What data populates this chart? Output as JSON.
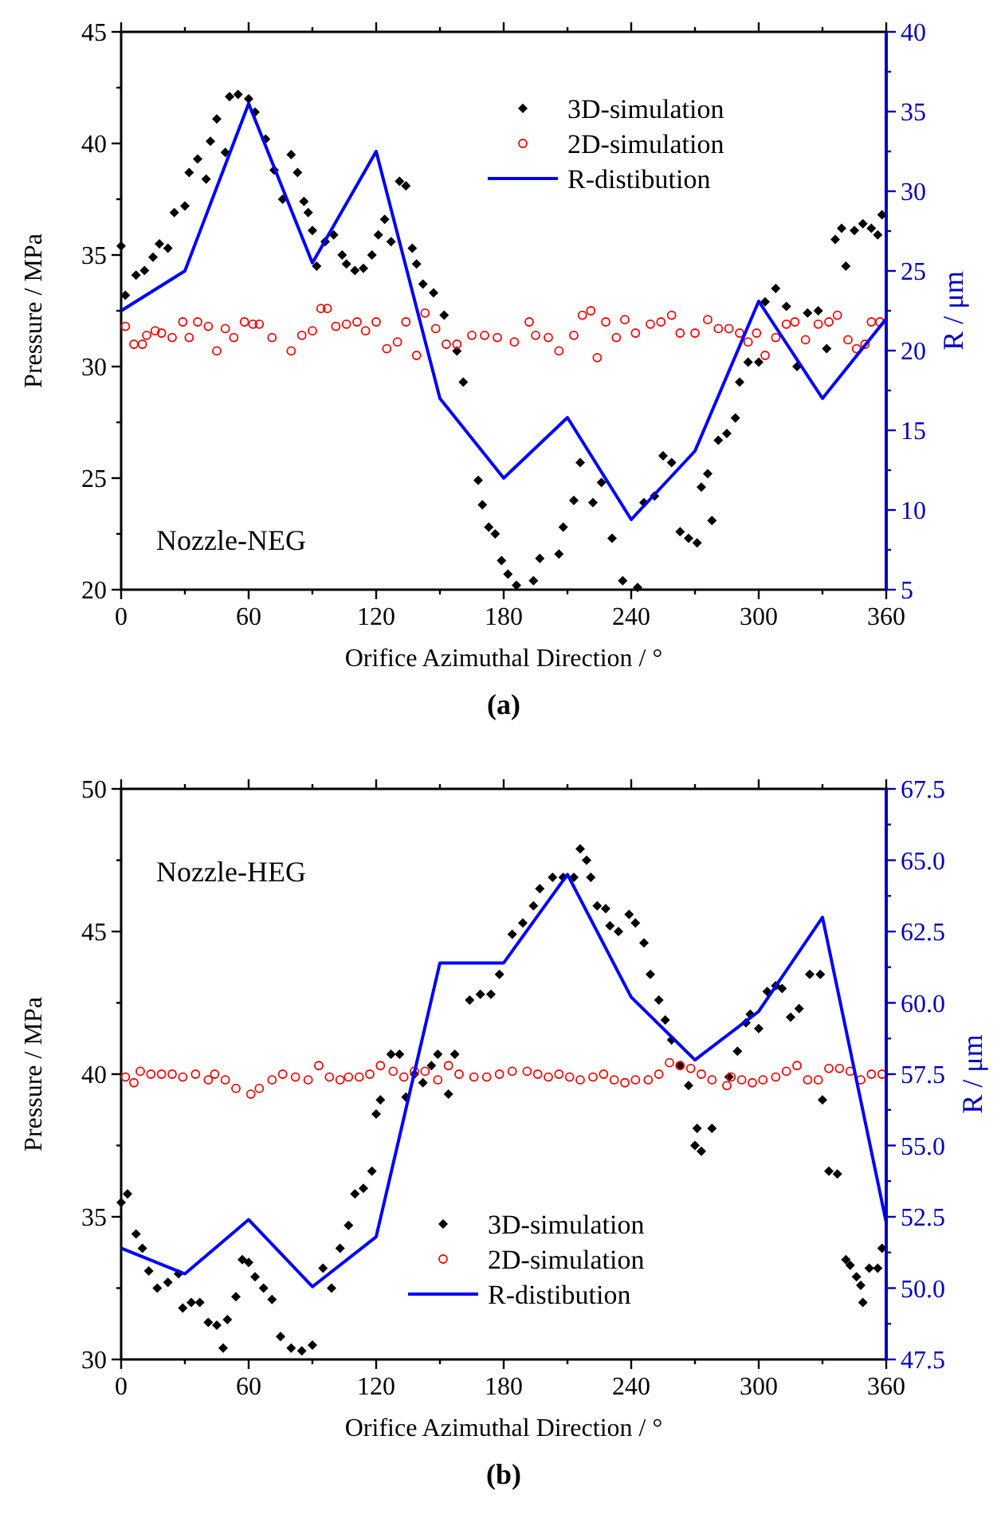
{
  "chart_data": [
    {
      "type": "scatter",
      "title": "(a)",
      "xlabel": "Orifice Azimuthal Direction / °",
      "ylabel": "Pressure / MPa",
      "y2label": "R / μm",
      "annotations": [
        "Nozzle-NEG"
      ],
      "legend": "top right",
      "xlim": [
        0,
        360
      ],
      "xticks": [
        0,
        {
          "value": 30,
          "label": null
        },
        60,
        {
          "value": 90,
          "label": null
        },
        120,
        {
          "value": 150,
          "label": null
        },
        180,
        {
          "value": 210,
          "label": null
        },
        240,
        {
          "value": 270,
          "label": null
        },
        300,
        {
          "value": 330,
          "label": null
        },
        360
      ],
      "ylim": [
        20,
        45
      ],
      "yticks": [
        20,
        {
          "value": 22.5,
          "label": null
        },
        25,
        {
          "value": 27.5,
          "label": null
        },
        30,
        {
          "value": 32.5,
          "label": null
        },
        35,
        {
          "value": 37.5,
          "label": null
        },
        40,
        {
          "value": 42.5,
          "label": null
        },
        45
      ],
      "y2lim": [
        5,
        40
      ],
      "y2ticks": [
        5,
        {
          "value": 7.5,
          "label": null
        },
        10,
        {
          "value": 12.5,
          "label": null
        },
        15,
        {
          "value": 17.5,
          "label": null
        },
        20,
        {
          "value": 22.5,
          "label": null
        },
        25,
        {
          "value": 27.5,
          "label": null
        },
        30,
        {
          "value": 32.5,
          "label": null
        },
        35,
        {
          "value": 37.5,
          "label": null
        },
        40
      ],
      "series": [
        {
          "name": "3D-simulation",
          "marker": "diamond",
          "color": "#000000",
          "x": [
            0,
            2,
            7,
            11,
            15,
            18,
            22,
            25,
            30,
            32,
            36,
            40,
            42,
            45,
            49,
            51,
            55,
            60,
            63,
            68,
            72,
            76,
            80,
            83,
            86,
            88,
            90,
            92,
            96,
            100,
            104,
            106,
            110,
            114,
            118,
            121,
            124,
            127,
            131,
            134,
            137,
            139,
            142,
            147,
            152,
            158,
            161,
            168,
            170,
            173,
            176,
            179,
            182,
            186,
            194,
            197,
            206,
            208,
            213,
            216,
            222,
            226,
            231,
            236,
            243,
            246,
            251,
            255,
            259,
            263,
            267,
            271,
            273,
            276,
            278,
            281,
            285,
            289,
            291,
            295,
            300,
            303,
            308,
            313,
            318,
            323,
            328,
            332,
            336,
            339,
            341,
            345,
            349,
            353,
            356,
            358
          ],
          "values": [
            35.4,
            33.2,
            34.1,
            34.3,
            34.9,
            35.5,
            35.3,
            36.9,
            37.2,
            38.7,
            39.3,
            38.4,
            40.1,
            41.1,
            39.6,
            42.1,
            42.2,
            42.0,
            41.4,
            40.2,
            38.8,
            37.5,
            39.5,
            38.7,
            37.4,
            36.9,
            36.1,
            34.5,
            35.6,
            35.9,
            35.0,
            34.6,
            34.3,
            34.4,
            35.0,
            35.9,
            36.6,
            35.6,
            38.3,
            38.1,
            35.3,
            34.6,
            33.7,
            33.3,
            32.3,
            30.7,
            29.3,
            24.9,
            23.8,
            22.8,
            22.5,
            21.3,
            20.7,
            20.2,
            20.4,
            21.4,
            21.6,
            22.8,
            24.0,
            25.7,
            23.9,
            24.8,
            22.3,
            20.4,
            20.1,
            23.9,
            24.2,
            26.0,
            25.7,
            22.6,
            22.3,
            22.1,
            24.6,
            25.2,
            23.1,
            26.7,
            27.0,
            27.7,
            29.3,
            30.2,
            30.2,
            32.9,
            33.5,
            32.7,
            30.0,
            32.4,
            32.5,
            30.8,
            35.7,
            36.2,
            34.5,
            36.1,
            36.4,
            36.2,
            35.9,
            36.8
          ]
        },
        {
          "name": "2D-simulation",
          "marker": "circle",
          "color": "#ff0000",
          "x": [
            2,
            6,
            10,
            12,
            16,
            19,
            24,
            29,
            32,
            36,
            41,
            45,
            49,
            53,
            58,
            62,
            65,
            71,
            80,
            85,
            90,
            94,
            97,
            101,
            106,
            111,
            115,
            120,
            125,
            130,
            134,
            139,
            143,
            148,
            153,
            158,
            165,
            171,
            177,
            185,
            192,
            195,
            201,
            206,
            213,
            217,
            221,
            224,
            228,
            233,
            237,
            242,
            249,
            254,
            259,
            263,
            270,
            276,
            281,
            286,
            291,
            295,
            299,
            303,
            308,
            313,
            317,
            322,
            328,
            333,
            337,
            342,
            346,
            350,
            353,
            357
          ],
          "values": [
            31.8,
            31.0,
            31.0,
            31.4,
            31.6,
            31.5,
            31.3,
            32.0,
            31.3,
            32.0,
            31.8,
            30.7,
            31.7,
            31.3,
            32.0,
            31.9,
            31.9,
            31.3,
            30.7,
            31.4,
            31.6,
            32.6,
            32.6,
            31.8,
            31.9,
            32.0,
            31.6,
            32.0,
            30.8,
            31.1,
            32.0,
            30.5,
            32.4,
            31.7,
            31.0,
            31.0,
            31.4,
            31.4,
            31.3,
            31.1,
            32.0,
            31.4,
            31.3,
            30.7,
            31.4,
            32.3,
            32.5,
            30.4,
            32.0,
            31.3,
            32.1,
            31.5,
            31.9,
            32.0,
            32.3,
            31.5,
            31.5,
            32.1,
            31.7,
            31.7,
            31.5,
            31.1,
            31.5,
            30.5,
            31.3,
            31.9,
            32.0,
            31.2,
            31.9,
            32.0,
            32.3,
            31.2,
            30.8,
            31.0,
            32.0,
            32.0
          ]
        },
        {
          "name": "R-distibution",
          "type": "line",
          "marker": "none",
          "axis": "y2",
          "color": "#0000ff",
          "x": [
            0,
            30,
            60,
            90,
            120,
            150,
            180,
            210,
            240,
            270,
            300,
            330,
            360
          ],
          "values": [
            22.5,
            25,
            35.5,
            25.5,
            32.5,
            17,
            12,
            15.8,
            9.4,
            13.7,
            23.1,
            17,
            22
          ]
        }
      ]
    },
    {
      "type": "scatter",
      "title": "(b)",
      "xlabel": "Orifice Azimuthal Direction / °",
      "ylabel": "Pressure / MPa",
      "y2label": "R / μm",
      "annotations": [
        "Nozzle-HEG"
      ],
      "legend": "bottom right",
      "xlim": [
        0,
        360
      ],
      "xticks": [
        0,
        {
          "value": 30,
          "label": null
        },
        60,
        {
          "value": 90,
          "label": null
        },
        120,
        {
          "value": 150,
          "label": null
        },
        180,
        {
          "value": 210,
          "label": null
        },
        240,
        {
          "value": 270,
          "label": null
        },
        300,
        {
          "value": 330,
          "label": null
        },
        360
      ],
      "ylim": [
        30,
        50
      ],
      "yticks": [
        30,
        {
          "value": 32.5,
          "label": null
        },
        35,
        {
          "value": 37.5,
          "label": null
        },
        40,
        {
          "value": 42.5,
          "label": null
        },
        45,
        {
          "value": 47.5,
          "label": null
        },
        50
      ],
      "y2lim": [
        47.5,
        67.5
      ],
      "y2ticks": [
        47.5,
        {
          "value": 48.75,
          "label": null
        },
        {
          "value": 50,
          "label": "50.0"
        },
        {
          "value": 51.25,
          "label": null
        },
        52.5,
        {
          "value": 53.75,
          "label": null
        },
        {
          "value": 55,
          "label": "55.0"
        },
        {
          "value": 56.25,
          "label": null
        },
        57.5,
        {
          "value": 58.75,
          "label": null
        },
        {
          "value": 60,
          "label": "60.0"
        },
        {
          "value": 61.25,
          "label": null
        },
        62.5,
        {
          "value": 63.75,
          "label": null
        },
        {
          "value": 65,
          "label": "65.0"
        },
        {
          "value": 66.25,
          "label": null
        },
        67.5
      ],
      "series": [
        {
          "name": "3D-simulation",
          "marker": "diamond",
          "color": "#000000",
          "x": [
            0,
            3,
            7,
            10,
            13,
            17,
            22,
            27,
            29,
            33,
            37,
            41,
            45,
            48,
            50,
            54,
            57,
            60,
            63,
            67,
            71,
            75,
            80,
            85,
            90,
            95,
            99,
            103,
            107,
            110,
            114,
            118,
            120,
            122,
            127,
            131,
            134,
            138,
            142,
            146,
            149,
            154,
            157,
            164,
            169,
            174,
            178,
            184,
            189,
            194,
            197,
            203,
            208,
            213,
            216,
            219,
            221,
            224,
            228,
            230,
            234,
            239,
            242,
            246,
            249,
            253,
            256,
            259,
            263,
            267,
            270,
            271,
            273,
            278,
            286,
            290,
            294,
            296,
            300,
            304,
            308,
            311,
            315,
            319,
            324,
            329,
            330,
            333,
            337,
            341,
            343,
            346,
            348,
            349,
            352,
            356,
            358
          ],
          "values": [
            35.5,
            35.8,
            34.4,
            33.9,
            33.1,
            32.5,
            32.7,
            33.0,
            31.8,
            32.0,
            32.0,
            31.3,
            31.2,
            30.4,
            31.4,
            32.2,
            33.5,
            33.4,
            32.9,
            32.5,
            32.1,
            30.8,
            30.4,
            30.3,
            30.5,
            33.2,
            32.5,
            33.9,
            34.7,
            35.8,
            36.0,
            36.6,
            38.6,
            39.1,
            40.7,
            40.7,
            39.2,
            40.0,
            39.7,
            40.3,
            40.7,
            39.3,
            40.7,
            42.6,
            42.8,
            42.8,
            43.5,
            44.9,
            45.3,
            45.9,
            46.5,
            46.9,
            46.9,
            46.9,
            47.9,
            47.5,
            46.9,
            45.9,
            45.8,
            45.2,
            45.0,
            45.6,
            45.3,
            44.6,
            43.5,
            42.6,
            41.9,
            41.2,
            40.3,
            39.6,
            37.5,
            38.1,
            37.3,
            38.1,
            39.9,
            40.8,
            41.8,
            42.1,
            41.6,
            42.9,
            43.1,
            43.0,
            42.0,
            42.3,
            43.5,
            43.5,
            39.1,
            36.6,
            36.5,
            33.5,
            33.3,
            32.9,
            32.6,
            32.0,
            33.2,
            33.2,
            33.9
          ]
        },
        {
          "name": "2D-simulation",
          "marker": "circle",
          "color": "#ff0000",
          "x": [
            2,
            6,
            9,
            14,
            19,
            24,
            29,
            35,
            41,
            44,
            49,
            54,
            61,
            65,
            71,
            76,
            82,
            88,
            93,
            98,
            103,
            107,
            112,
            117,
            122,
            128,
            133,
            138,
            143,
            149,
            154,
            159,
            166,
            172,
            178,
            184,
            191,
            196,
            201,
            206,
            211,
            216,
            222,
            227,
            232,
            237,
            242,
            248,
            253,
            258,
            263,
            268,
            273,
            278,
            285,
            287,
            292,
            297,
            302,
            308,
            313,
            318,
            323,
            328,
            333,
            338,
            343,
            348,
            353,
            358
          ],
          "values": [
            39.9,
            39.7,
            40.1,
            40.0,
            40.0,
            40.0,
            39.9,
            40.0,
            39.8,
            40.0,
            39.8,
            39.5,
            39.3,
            39.5,
            39.8,
            40.0,
            39.9,
            39.8,
            40.3,
            39.9,
            39.8,
            39.9,
            39.9,
            40.0,
            40.3,
            40.1,
            39.9,
            40.1,
            40.1,
            39.8,
            40.3,
            40.0,
            39.9,
            39.9,
            40.0,
            40.1,
            40.1,
            40.0,
            39.9,
            40.0,
            39.9,
            39.8,
            39.9,
            40.0,
            39.8,
            39.7,
            39.8,
            39.8,
            40.0,
            40.4,
            40.3,
            40.2,
            40.0,
            39.8,
            39.6,
            39.9,
            39.8,
            39.7,
            39.8,
            39.9,
            40.1,
            40.3,
            39.8,
            39.8,
            40.2,
            40.2,
            40.1,
            39.8,
            40.0,
            40.0
          ]
        },
        {
          "name": "R-distibution",
          "type": "line",
          "marker": "none",
          "axis": "y2",
          "color": "#0000ff",
          "x": [
            0,
            30,
            60,
            90,
            120,
            150,
            180,
            210,
            240,
            270,
            300,
            330,
            360
          ],
          "values": [
            51.4,
            50.5,
            52.4,
            50.05,
            51.8,
            61.4,
            61.4,
            64.5,
            60.2,
            58.0,
            59.7,
            63.0,
            52.3
          ]
        }
      ]
    }
  ]
}
